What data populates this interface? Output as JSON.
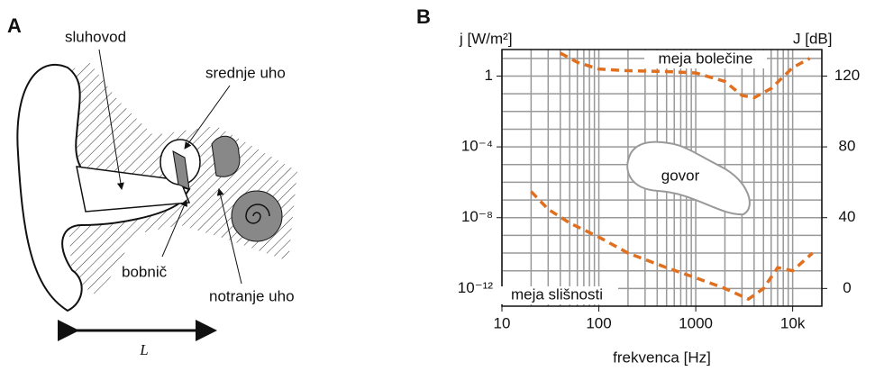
{
  "panel_a": {
    "letter": "A",
    "labels": {
      "canal": "sluhovod",
      "middle": "srednje uho",
      "drum": "bobnič",
      "inner": "notranje uho",
      "length": "L"
    }
  },
  "chart_data": {
    "type": "line",
    "letter": "B",
    "x_label": "frekvenca [Hz]",
    "y_label": "j [W/m²]",
    "y2_label": "J [dB]",
    "log_x": true,
    "log_y": true,
    "grid": true,
    "xlim": [
      10,
      20000
    ],
    "xticks": [
      10,
      100,
      1000,
      {
        "value": 10000,
        "label": "10k"
      }
    ],
    "x_minor_grid": [
      20,
      30,
      40,
      50,
      60,
      70,
      80,
      90,
      200,
      300,
      400,
      500,
      600,
      700,
      800,
      900,
      2000,
      3000,
      4000,
      5000,
      6000,
      7000,
      8000,
      9000,
      20000
    ],
    "ylim": [
      1e-13,
      31.6
    ],
    "yticks": [
      {
        "value": 1e-12,
        "label": "10⁻¹²"
      },
      {
        "value": 1e-08,
        "label": "10⁻⁸"
      },
      {
        "value": 0.0001,
        "label": "10⁻⁴"
      },
      1
    ],
    "y_minor_grid": [
      1e-11,
      1e-10,
      1e-09,
      1e-07,
      1e-06,
      1e-05,
      0.001,
      0.01,
      0.1,
      10
    ],
    "y2lim": [
      -10,
      135
    ],
    "y2ticks": [
      0,
      40,
      80,
      120
    ],
    "region_label": "govor",
    "series": [
      {
        "name": "meja bolečine",
        "color": "#e07020",
        "x": [
          40,
          60,
          100,
          200,
          500,
          1000,
          2000,
          3000,
          4000,
          6000,
          10000,
          15000
        ],
        "values": [
          20,
          6,
          2.5,
          2,
          1.8,
          1.5,
          0.5,
          0.08,
          0.06,
          0.2,
          3,
          10
        ]
      },
      {
        "name": "meja slišnosti",
        "color": "#e07020",
        "x": [
          20,
          30,
          50,
          100,
          200,
          500,
          1000,
          2000,
          3500,
          5000,
          7000,
          10000,
          16000
        ],
        "values": [
          3e-07,
          3e-08,
          5e-09,
          8e-10,
          1e-10,
          1.5e-11,
          4e-12,
          1e-12,
          2.5e-13,
          1e-12,
          1.5e-11,
          1e-11,
          1e-10
        ]
      }
    ]
  }
}
